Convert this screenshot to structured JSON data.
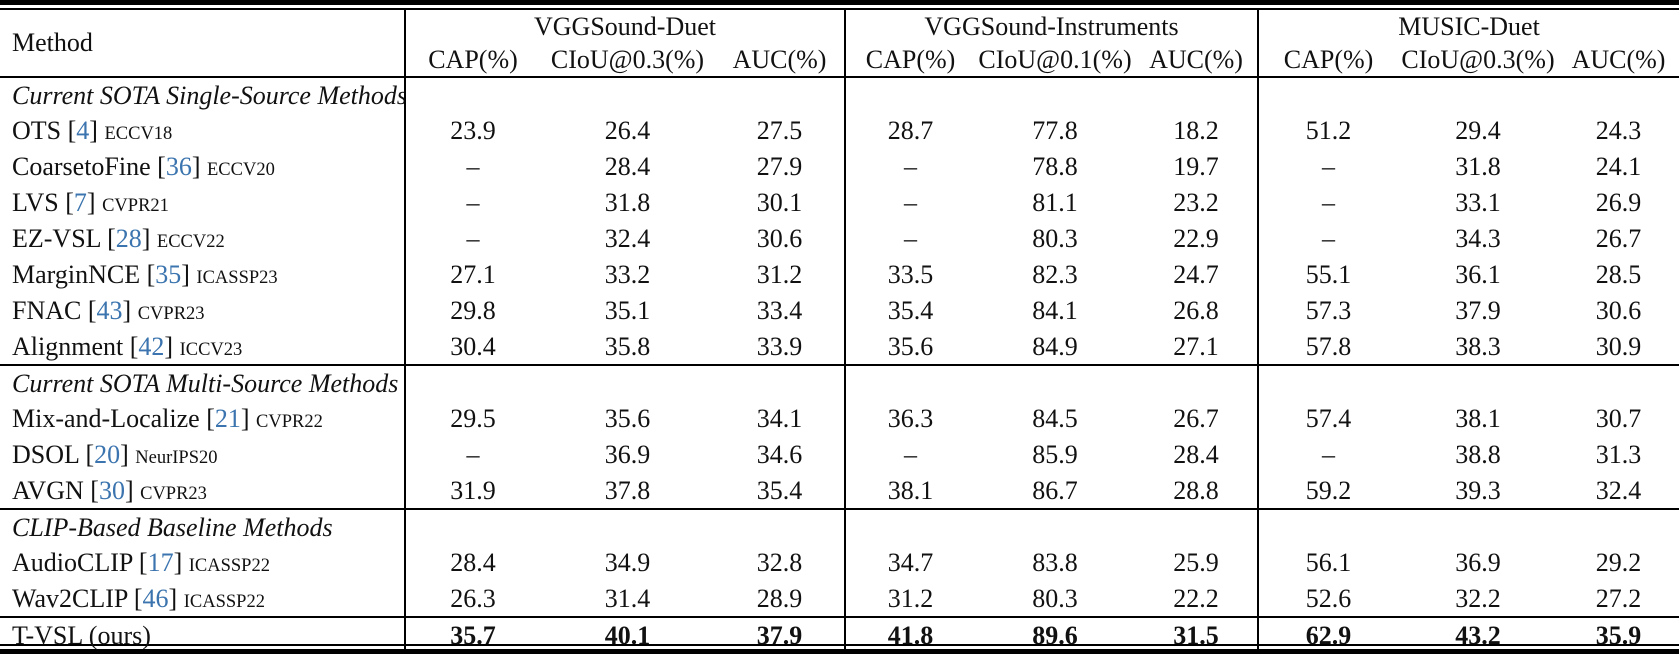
{
  "punct": {
    "open": "[",
    "close": "]"
  },
  "colors": {
    "citation_link": "#3b74ae",
    "text": "#111111",
    "rules": "#000000"
  },
  "table": {
    "method_header": "Method",
    "groups": [
      {
        "name": "VGGSound-Duet",
        "cols": [
          "CAP(%)",
          "CIoU@0.3(%)",
          "AUC(%)"
        ]
      },
      {
        "name": "VGGSound-Instruments",
        "cols": [
          "CAP(%)",
          "CIoU@0.1(%)",
          "AUC(%)"
        ]
      },
      {
        "name": "MUSIC-Duet",
        "cols": [
          "CAP(%)",
          "CIoU@0.3(%)",
          "AUC(%)"
        ]
      }
    ],
    "sections": [
      {
        "header": "Current SOTA Single-Source Methods",
        "rows": [
          {
            "name": "OTS",
            "cite": "4",
            "venue": "ECCV18",
            "values": [
              "23.9",
              "26.4",
              "27.5",
              "28.7",
              "77.8",
              "18.2",
              "51.2",
              "29.4",
              "24.3"
            ]
          },
          {
            "name": "CoarsetoFine",
            "cite": "36",
            "venue": "ECCV20",
            "values": [
              "–",
              "28.4",
              "27.9",
              "–",
              "78.8",
              "19.7",
              "–",
              "31.8",
              "24.1"
            ]
          },
          {
            "name": "LVS",
            "cite": "7",
            "venue": "CVPR21",
            "values": [
              "–",
              "31.8",
              "30.1",
              "–",
              "81.1",
              "23.2",
              "–",
              "33.1",
              "26.9"
            ]
          },
          {
            "name": "EZ-VSL",
            "cite": "28",
            "venue": "ECCV22",
            "values": [
              "–",
              "32.4",
              "30.6",
              "–",
              "80.3",
              "22.9",
              "–",
              "34.3",
              "26.7"
            ]
          },
          {
            "name": "MarginNCE",
            "cite": "35",
            "venue": "ICASSP23",
            "values": [
              "27.1",
              "33.2",
              "31.2",
              "33.5",
              "82.3",
              "24.7",
              "55.1",
              "36.1",
              "28.5"
            ]
          },
          {
            "name": "FNAC",
            "cite": "43",
            "venue": "CVPR23",
            "values": [
              "29.8",
              "35.1",
              "33.4",
              "35.4",
              "84.1",
              "26.8",
              "57.3",
              "37.9",
              "30.6"
            ]
          },
          {
            "name": "Alignment",
            "cite": "42",
            "venue": "ICCV23",
            "values": [
              "30.4",
              "35.8",
              "33.9",
              "35.6",
              "84.9",
              "27.1",
              "57.8",
              "38.3",
              "30.9"
            ]
          }
        ]
      },
      {
        "header": "Current SOTA Multi-Source Methods",
        "rows": [
          {
            "name": "Mix-and-Localize",
            "cite": "21",
            "venue": "CVPR22",
            "values": [
              "29.5",
              "35.6",
              "34.1",
              "36.3",
              "84.5",
              "26.7",
              "57.4",
              "38.1",
              "30.7"
            ]
          },
          {
            "name": "DSOL",
            "cite": "20",
            "venue": "NeurIPS20",
            "values": [
              "–",
              "36.9",
              "34.6",
              "–",
              "85.9",
              "28.4",
              "–",
              "38.8",
              "31.3"
            ]
          },
          {
            "name": "AVGN",
            "cite": "30",
            "venue": "CVPR23",
            "values": [
              "31.9",
              "37.8",
              "35.4",
              "38.1",
              "86.7",
              "28.8",
              "59.2",
              "39.3",
              "32.4"
            ]
          }
        ]
      },
      {
        "header": "CLIP-Based Baseline Methods",
        "rows": [
          {
            "name": "AudioCLIP",
            "cite": "17",
            "venue": "ICASSP22",
            "values": [
              "28.4",
              "34.9",
              "32.8",
              "34.7",
              "83.8",
              "25.9",
              "56.1",
              "36.9",
              "29.2"
            ]
          },
          {
            "name": "Wav2CLIP",
            "cite": "46",
            "venue": "ICASSP22",
            "values": [
              "26.3",
              "31.4",
              "28.9",
              "31.2",
              "80.3",
              "22.2",
              "52.6",
              "32.2",
              "27.2"
            ]
          }
        ]
      }
    ],
    "final": {
      "name": "T-VSL (ours)",
      "values": [
        "35.7",
        "40.1",
        "37.9",
        "41.8",
        "89.6",
        "31.5",
        "62.9",
        "43.2",
        "35.9"
      ]
    }
  }
}
